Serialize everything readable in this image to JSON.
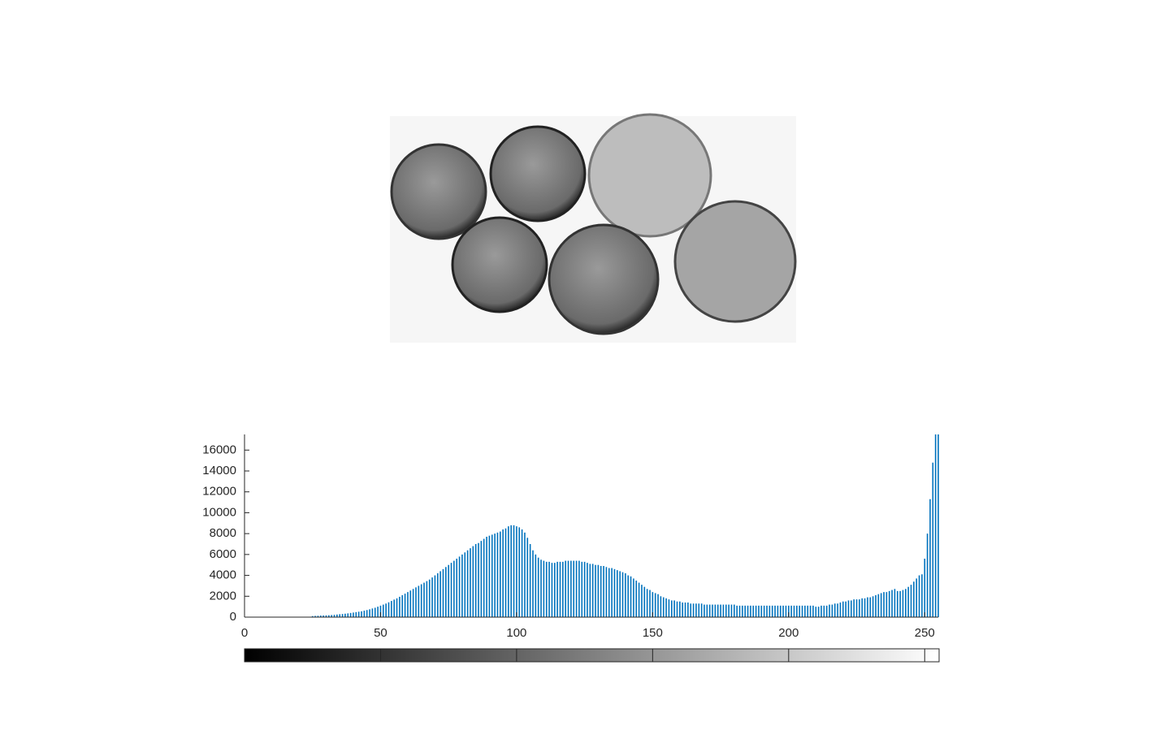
{
  "chart_data": {
    "type": "bar",
    "x": [
      0,
      1,
      2,
      3,
      4,
      5,
      6,
      7,
      8,
      9,
      10,
      11,
      12,
      13,
      14,
      15,
      16,
      17,
      18,
      19,
      20,
      21,
      22,
      23,
      24,
      25,
      26,
      27,
      28,
      29,
      30,
      31,
      32,
      33,
      34,
      35,
      36,
      37,
      38,
      39,
      40,
      41,
      42,
      43,
      44,
      45,
      46,
      47,
      48,
      49,
      50,
      51,
      52,
      53,
      54,
      55,
      56,
      57,
      58,
      59,
      60,
      61,
      62,
      63,
      64,
      65,
      66,
      67,
      68,
      69,
      70,
      71,
      72,
      73,
      74,
      75,
      76,
      77,
      78,
      79,
      80,
      81,
      82,
      83,
      84,
      85,
      86,
      87,
      88,
      89,
      90,
      91,
      92,
      93,
      94,
      95,
      96,
      97,
      98,
      99,
      100,
      101,
      102,
      103,
      104,
      105,
      106,
      107,
      108,
      109,
      110,
      111,
      112,
      113,
      114,
      115,
      116,
      117,
      118,
      119,
      120,
      121,
      122,
      123,
      124,
      125,
      126,
      127,
      128,
      129,
      130,
      131,
      132,
      133,
      134,
      135,
      136,
      137,
      138,
      139,
      140,
      141,
      142,
      143,
      144,
      145,
      146,
      147,
      148,
      149,
      150,
      151,
      152,
      153,
      154,
      155,
      156,
      157,
      158,
      159,
      160,
      161,
      162,
      163,
      164,
      165,
      166,
      167,
      168,
      169,
      170,
      171,
      172,
      173,
      174,
      175,
      176,
      177,
      178,
      179,
      180,
      181,
      182,
      183,
      184,
      185,
      186,
      187,
      188,
      189,
      190,
      191,
      192,
      193,
      194,
      195,
      196,
      197,
      198,
      199,
      200,
      201,
      202,
      203,
      204,
      205,
      206,
      207,
      208,
      209,
      210,
      211,
      212,
      213,
      214,
      215,
      216,
      217,
      218,
      219,
      220,
      221,
      222,
      223,
      224,
      225,
      226,
      227,
      228,
      229,
      230,
      231,
      232,
      233,
      234,
      235,
      236,
      237,
      238,
      239,
      240,
      241,
      242,
      243,
      244,
      245,
      246,
      247,
      248,
      249,
      250,
      251,
      252,
      253,
      254,
      255
    ],
    "values": [
      0,
      0,
      0,
      0,
      0,
      0,
      0,
      0,
      0,
      0,
      0,
      0,
      0,
      0,
      0,
      0,
      0,
      0,
      0,
      0,
      0,
      0,
      0,
      0,
      0,
      100,
      120,
      130,
      150,
      160,
      170,
      180,
      200,
      220,
      250,
      280,
      300,
      330,
      360,
      400,
      440,
      480,
      520,
      560,
      620,
      680,
      750,
      830,
      900,
      1000,
      1100,
      1200,
      1300,
      1420,
      1550,
      1680,
      1800,
      1950,
      2100,
      2250,
      2400,
      2550,
      2700,
      2850,
      3000,
      3150,
      3300,
      3450,
      3600,
      3800,
      4000,
      4200,
      4400,
      4600,
      4800,
      5000,
      5200,
      5400,
      5600,
      5800,
      6000,
      6200,
      6400,
      6600,
      6800,
      7000,
      7100,
      7300,
      7500,
      7700,
      7800,
      7900,
      8000,
      8100,
      8200,
      8400,
      8500,
      8700,
      8800,
      8800,
      8700,
      8600,
      8400,
      8100,
      7600,
      7000,
      6400,
      6000,
      5700,
      5500,
      5400,
      5300,
      5300,
      5200,
      5200,
      5300,
      5300,
      5300,
      5400,
      5400,
      5400,
      5400,
      5400,
      5400,
      5300,
      5300,
      5200,
      5100,
      5100,
      5000,
      5000,
      4900,
      4900,
      4800,
      4700,
      4700,
      4600,
      4500,
      4400,
      4300,
      4200,
      4000,
      3900,
      3700,
      3500,
      3300,
      3100,
      2900,
      2700,
      2600,
      2400,
      2300,
      2200,
      2000,
      1900,
      1800,
      1700,
      1600,
      1600,
      1500,
      1500,
      1400,
      1400,
      1400,
      1300,
      1300,
      1300,
      1300,
      1300,
      1200,
      1200,
      1200,
      1200,
      1200,
      1200,
      1200,
      1200,
      1200,
      1200,
      1200,
      1200,
      1100,
      1100,
      1100,
      1100,
      1100,
      1100,
      1100,
      1100,
      1100,
      1100,
      1100,
      1100,
      1100,
      1100,
      1100,
      1100,
      1100,
      1100,
      1100,
      1100,
      1100,
      1100,
      1100,
      1100,
      1100,
      1100,
      1100,
      1100,
      1100,
      1000,
      1000,
      1100,
      1100,
      1100,
      1200,
      1200,
      1300,
      1300,
      1400,
      1500,
      1500,
      1600,
      1600,
      1700,
      1700,
      1700,
      1800,
      1800,
      1900,
      1900,
      2000,
      2100,
      2200,
      2300,
      2400,
      2400,
      2500,
      2600,
      2700,
      2500,
      2500,
      2600,
      2700,
      2900,
      3100,
      3400,
      3700,
      4000,
      4100,
      5600,
      8000,
      11300,
      14800,
      17500,
      17500
    ],
    "color": "#0072bd",
    "xlim": [
      0,
      255
    ],
    "xticks": [
      0,
      50,
      100,
      150,
      200,
      250
    ],
    "ylim": [
      0,
      17500
    ],
    "yticks": [
      0,
      2000,
      4000,
      6000,
      8000,
      10000,
      12000,
      14000,
      16000
    ],
    "grid": false
  }
}
